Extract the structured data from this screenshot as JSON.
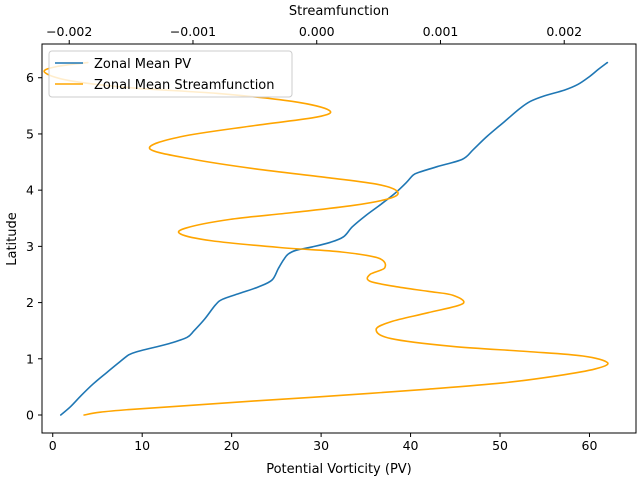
{
  "chart_data": {
    "type": "line",
    "xlabel_bottom": "Potential Vorticity (PV)",
    "xlabel_top": "Streamfunction",
    "ylabel": "Latitude",
    "bottom_xlim": [
      -1.2,
      65.2
    ],
    "top_xlim": [
      -0.00222,
      0.00258
    ],
    "ylim": [
      -0.32,
      6.6
    ],
    "bottom_xticks": [
      0,
      10,
      20,
      30,
      40,
      50,
      60
    ],
    "top_xticks": [
      {
        "value": -0.002,
        "label": "−0.002"
      },
      {
        "value": -0.001,
        "label": "−0.001"
      },
      {
        "value": 0.0,
        "label": "0.000"
      },
      {
        "value": 0.001,
        "label": "0.001"
      },
      {
        "value": 0.002,
        "label": "0.002"
      }
    ],
    "yticks": [
      0,
      1,
      2,
      3,
      4,
      5,
      6
    ],
    "grid": false,
    "legend": {
      "position": "top-left"
    },
    "series": [
      {
        "name": "Zonal Mean PV",
        "axis": "bottom",
        "color": "#1f77b4",
        "points": [
          [
            0.9,
            0.0
          ],
          [
            2.0,
            0.15
          ],
          [
            3.2,
            0.35
          ],
          [
            4.5,
            0.55
          ],
          [
            6.0,
            0.75
          ],
          [
            7.3,
            0.92
          ],
          [
            8.5,
            1.07
          ],
          [
            9.5,
            1.13
          ],
          [
            11.0,
            1.19
          ],
          [
            13.0,
            1.27
          ],
          [
            15.0,
            1.38
          ],
          [
            15.8,
            1.5
          ],
          [
            17.0,
            1.71
          ],
          [
            18.2,
            1.96
          ],
          [
            19.0,
            2.06
          ],
          [
            21.0,
            2.17
          ],
          [
            23.0,
            2.28
          ],
          [
            24.5,
            2.4
          ],
          [
            25.2,
            2.6
          ],
          [
            25.8,
            2.76
          ],
          [
            26.3,
            2.86
          ],
          [
            27.2,
            2.93
          ],
          [
            29.0,
            2.99
          ],
          [
            31.0,
            3.07
          ],
          [
            32.5,
            3.17
          ],
          [
            33.5,
            3.35
          ],
          [
            35.0,
            3.55
          ],
          [
            36.7,
            3.75
          ],
          [
            38.3,
            3.95
          ],
          [
            39.5,
            4.13
          ],
          [
            40.3,
            4.27
          ],
          [
            41.0,
            4.32
          ],
          [
            43.0,
            4.42
          ],
          [
            45.8,
            4.55
          ],
          [
            47.0,
            4.72
          ],
          [
            48.5,
            4.95
          ],
          [
            50.5,
            5.22
          ],
          [
            52.2,
            5.45
          ],
          [
            53.4,
            5.58
          ],
          [
            55.0,
            5.68
          ],
          [
            57.2,
            5.78
          ],
          [
            58.7,
            5.88
          ],
          [
            60.0,
            6.02
          ],
          [
            61.0,
            6.15
          ],
          [
            62.0,
            6.27
          ]
        ]
      },
      {
        "name": "Zonal Mean Streamfunction",
        "axis": "top",
        "color": "#ffa500",
        "points": [
          [
            -0.00188,
            0.0
          ],
          [
            -0.00175,
            0.05
          ],
          [
            -0.0015,
            0.1
          ],
          [
            -0.0011,
            0.16
          ],
          [
            -0.0005,
            0.25
          ],
          [
            0.0002,
            0.35
          ],
          [
            0.0009,
            0.46
          ],
          [
            0.0015,
            0.57
          ],
          [
            0.00195,
            0.7
          ],
          [
            0.00225,
            0.82
          ],
          [
            0.00235,
            0.93
          ],
          [
            0.00215,
            1.05
          ],
          [
            0.0017,
            1.13
          ],
          [
            0.0011,
            1.22
          ],
          [
            0.0006,
            1.36
          ],
          [
            0.00048,
            1.52
          ],
          [
            0.0006,
            1.66
          ],
          [
            0.0009,
            1.82
          ],
          [
            0.00118,
            1.98
          ],
          [
            0.0011,
            2.13
          ],
          [
            0.0009,
            2.2
          ],
          [
            0.00065,
            2.28
          ],
          [
            0.00043,
            2.38
          ],
          [
            0.00043,
            2.5
          ],
          [
            0.00055,
            2.62
          ],
          [
            0.0005,
            2.79
          ],
          [
            0.0002,
            2.9
          ],
          [
            -0.0003,
            2.98
          ],
          [
            -0.00085,
            3.1
          ],
          [
            -0.0011,
            3.22
          ],
          [
            -0.00105,
            3.33
          ],
          [
            -0.0007,
            3.48
          ],
          [
            -0.0002,
            3.6
          ],
          [
            0.0003,
            3.73
          ],
          [
            0.0006,
            3.86
          ],
          [
            0.00065,
            3.98
          ],
          [
            0.0005,
            4.1
          ],
          [
            0.0001,
            4.22
          ],
          [
            -0.0005,
            4.38
          ],
          [
            -0.001,
            4.55
          ],
          [
            -0.00135,
            4.74
          ],
          [
            -0.0011,
            4.95
          ],
          [
            -0.0005,
            5.15
          ],
          [
            0.0,
            5.3
          ],
          [
            0.0001,
            5.42
          ],
          [
            -0.0002,
            5.58
          ],
          [
            -0.0008,
            5.72
          ],
          [
            -0.0015,
            5.82
          ],
          [
            -0.002,
            5.95
          ],
          [
            -0.0022,
            6.1
          ],
          [
            -0.0021,
            6.2
          ],
          [
            -0.00185,
            6.27
          ]
        ]
      }
    ]
  }
}
